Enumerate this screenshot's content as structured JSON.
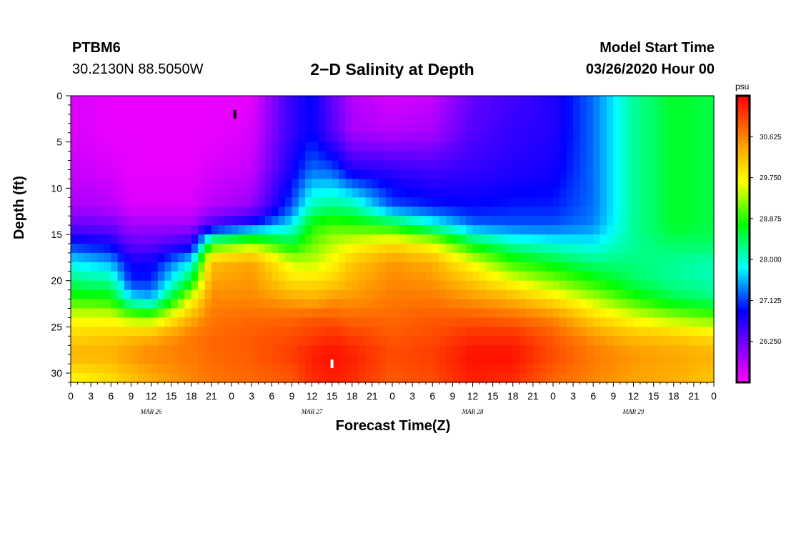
{
  "header": {
    "station": "PTBM6",
    "coords": "30.2130N 88.5050W",
    "title": "2−D Salinity at Depth",
    "model_start_label": "Model Start Time",
    "model_start_value": "03/26/2020 Hour 00"
  },
  "chart_data": {
    "type": "heatmap",
    "title": "2-D Salinity at Depth",
    "xlabel": "Forecast Time(Z)",
    "ylabel": "Depth (ft)",
    "x_range_hours": [
      0,
      96
    ],
    "ylim": [
      0,
      31
    ],
    "y_ticks": [
      "0",
      "5",
      "10",
      "15",
      "20",
      "25",
      "30"
    ],
    "x_ticks": [
      "0",
      "3",
      "6",
      "9",
      "12",
      "15",
      "18",
      "21",
      "0",
      "3",
      "6",
      "9",
      "12",
      "15",
      "18",
      "21",
      "0",
      "3",
      "6",
      "9",
      "12",
      "15",
      "18",
      "21",
      "0",
      "3",
      "6",
      "9",
      "12",
      "15",
      "18",
      "21",
      "0"
    ],
    "date_labels": [
      {
        "label": "MAR 26",
        "hour": 12
      },
      {
        "label": "MAR 27",
        "hour": 36
      },
      {
        "label": "MAR 28",
        "hour": 60
      },
      {
        "label": "MAR 29",
        "hour": 84
      }
    ],
    "colorbar": {
      "unit": "psu",
      "min": 25.375,
      "max": 31.5,
      "tick_labels": [
        "30.625",
        "29.750",
        "28.875",
        "28.000",
        "27.125",
        "26.250"
      ],
      "tick_values": [
        30.625,
        29.75,
        28.875,
        28.0,
        27.125,
        26.25
      ]
    },
    "markers": [
      {
        "hour": 24.5,
        "depth": 2,
        "color": "black"
      },
      {
        "hour": 39,
        "depth": 29,
        "color": "white"
      }
    ],
    "profiles": {
      "description": "salinity (psu) at depth levels, per forecast hour",
      "depths": [
        0,
        4,
        8,
        12,
        14,
        16,
        18,
        20,
        22,
        24,
        26,
        28,
        31
      ],
      "hours": [
        0,
        6,
        9,
        12,
        18,
        21,
        27,
        33,
        36,
        39,
        42,
        48,
        54,
        60,
        66,
        72,
        78,
        84,
        90,
        96
      ],
      "values": [
        [
          25.6,
          25.6,
          25.7,
          25.9,
          26.3,
          27.0,
          27.8,
          28.3,
          28.9,
          29.6,
          30.0,
          30.3,
          29.6
        ],
        [
          25.5,
          25.5,
          25.6,
          25.8,
          26.2,
          26.8,
          27.5,
          28.2,
          28.8,
          29.6,
          30.1,
          30.3,
          29.9
        ],
        [
          25.5,
          25.5,
          25.5,
          25.6,
          25.9,
          26.3,
          26.8,
          27.0,
          27.8,
          29.3,
          30.2,
          30.5,
          30.1
        ],
        [
          25.5,
          25.5,
          25.5,
          25.6,
          25.9,
          26.3,
          26.8,
          27.0,
          27.6,
          29.2,
          30.3,
          30.6,
          30.3
        ],
        [
          25.5,
          25.5,
          25.5,
          25.6,
          25.9,
          26.6,
          27.8,
          28.6,
          29.6,
          30.3,
          30.7,
          30.7,
          30.6
        ],
        [
          25.5,
          25.5,
          25.6,
          25.8,
          26.5,
          28.8,
          30.2,
          30.4,
          30.6,
          30.7,
          30.8,
          30.8,
          30.7
        ],
        [
          25.5,
          25.6,
          25.7,
          26.0,
          27.0,
          29.3,
          30.4,
          30.5,
          30.6,
          30.8,
          30.9,
          30.9,
          30.8
        ],
        [
          26.6,
          26.6,
          26.8,
          27.2,
          27.8,
          28.6,
          29.5,
          29.9,
          30.4,
          30.8,
          31.0,
          31.1,
          30.9
        ],
        [
          26.9,
          26.9,
          27.3,
          28.1,
          28.8,
          29.1,
          29.4,
          29.9,
          30.3,
          30.9,
          31.1,
          31.3,
          31.2
        ],
        [
          26.3,
          26.4,
          27.2,
          28.3,
          29.0,
          29.4,
          29.7,
          30.0,
          30.5,
          30.9,
          31.2,
          31.4,
          31.3
        ],
        [
          25.8,
          25.9,
          26.7,
          28.2,
          28.9,
          29.6,
          30.1,
          30.3,
          30.5,
          30.8,
          31.1,
          31.3,
          31.2
        ],
        [
          25.6,
          25.8,
          26.6,
          27.2,
          28.7,
          29.9,
          30.5,
          30.6,
          30.7,
          30.8,
          30.9,
          31.0,
          30.9
        ],
        [
          25.7,
          25.9,
          26.5,
          27.0,
          28.0,
          29.6,
          30.3,
          30.5,
          30.7,
          30.9,
          31.0,
          31.1,
          31.0
        ],
        [
          26.3,
          26.4,
          26.6,
          26.9,
          27.3,
          28.6,
          29.6,
          30.1,
          30.5,
          30.9,
          31.2,
          31.4,
          31.3
        ],
        [
          26.5,
          26.6,
          26.7,
          27.0,
          27.2,
          28.1,
          28.9,
          29.6,
          30.3,
          30.8,
          31.2,
          31.4,
          31.2
        ],
        [
          26.7,
          26.7,
          26.8,
          27.0,
          27.2,
          27.9,
          28.6,
          29.2,
          29.9,
          30.6,
          30.9,
          31.0,
          30.8
        ],
        [
          27.3,
          27.3,
          27.3,
          27.3,
          27.4,
          27.8,
          28.3,
          28.8,
          29.4,
          30.0,
          30.5,
          30.7,
          30.6
        ],
        [
          28.2,
          28.2,
          28.2,
          28.2,
          28.2,
          28.2,
          28.3,
          28.4,
          28.9,
          29.6,
          30.2,
          30.5,
          30.4
        ],
        [
          28.6,
          28.6,
          28.6,
          28.6,
          28.6,
          28.4,
          28.2,
          28.2,
          28.5,
          29.3,
          30.1,
          30.4,
          30.3
        ],
        [
          28.5,
          28.5,
          28.5,
          28.5,
          28.5,
          28.4,
          28.1,
          28.1,
          28.3,
          29.1,
          29.9,
          30.3,
          30.1
        ]
      ]
    }
  }
}
